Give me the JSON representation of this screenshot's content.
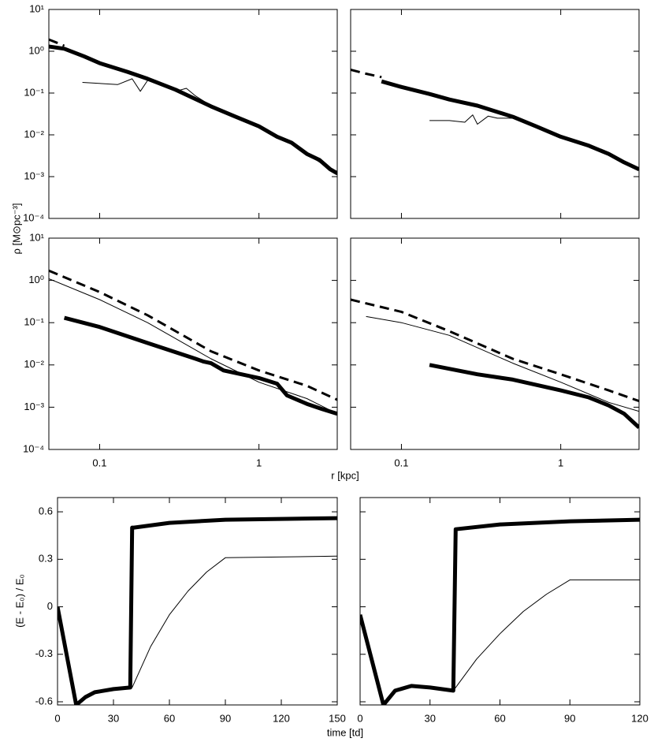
{
  "labels": {
    "ylabel_density": "ρ [M⊙pc⁻³]",
    "xlabel_r": "r [kpc]",
    "ylabel_energy": "(E - E₀) / E₀",
    "xlabel_time": "time [td]"
  },
  "chart_data": [
    {
      "type": "line",
      "xlog": true,
      "ylog": true,
      "xlim": [
        0.048,
        3.1
      ],
      "ylim": [
        0.0001,
        10
      ],
      "xticks": [
        0.1,
        1
      ],
      "show_xtick_labels": false,
      "show_ytick_labels": true,
      "yticks": [
        {
          "value": 10,
          "label": "10¹"
        },
        {
          "value": 1,
          "label": "10⁰"
        },
        {
          "value": 0.1,
          "label": "10⁻¹"
        },
        {
          "value": 0.01,
          "label": "10⁻²"
        },
        {
          "value": 0.001,
          "label": "10⁻³"
        },
        {
          "value": 0.0001,
          "label": "10⁻⁴"
        }
      ],
      "series": [
        {
          "color": "#000000",
          "width": 3,
          "dashed": true,
          "x": [
            0.048,
            0.055,
            0.06
          ],
          "values": [
            1.9,
            1.55,
            1.35
          ]
        },
        {
          "color": "#000000",
          "width": 1,
          "dashed": false,
          "x": [
            0.078,
            0.13,
            0.16,
            0.18,
            0.2,
            0.25,
            0.3,
            0.35,
            0.4,
            0.5,
            0.7,
            1,
            1.5,
            2,
            2.5,
            3.1
          ],
          "values": [
            0.18,
            0.16,
            0.22,
            0.11,
            0.2,
            0.17,
            0.11,
            0.13,
            0.085,
            0.05,
            0.028,
            0.017,
            0.007,
            0.0035,
            0.002,
            0.0011
          ]
        },
        {
          "color": "#000000",
          "width": 5,
          "dashed": false,
          "x": [
            0.048,
            0.06,
            0.08,
            0.1,
            0.15,
            0.2,
            0.3,
            0.5,
            0.7,
            1,
            1.3,
            1.6,
            2,
            2.4,
            2.8,
            3.1
          ],
          "values": [
            1.3,
            1.15,
            0.75,
            0.52,
            0.32,
            0.22,
            0.12,
            0.048,
            0.028,
            0.016,
            0.009,
            0.0065,
            0.0035,
            0.0025,
            0.0015,
            0.0012
          ]
        }
      ]
    },
    {
      "type": "line",
      "xlog": true,
      "ylog": true,
      "xlim": [
        0.048,
        3.1
      ],
      "ylim": [
        0.0001,
        10
      ],
      "xticks": [
        0.1,
        1
      ],
      "show_xtick_labels": false,
      "show_ytick_labels": false,
      "yticks": [
        10,
        1,
        0.1,
        0.01,
        0.001,
        0.0001
      ],
      "series": [
        {
          "color": "#000000",
          "width": 3,
          "dashed": true,
          "x": [
            0.048,
            0.06,
            0.075
          ],
          "values": [
            0.36,
            0.29,
            0.24
          ]
        },
        {
          "color": "#000000",
          "width": 1,
          "dashed": false,
          "x": [
            0.15,
            0.2,
            0.25,
            0.28,
            0.3,
            0.35,
            0.4,
            0.5,
            0.7,
            1,
            1.5,
            2,
            2.5,
            3.1
          ],
          "values": [
            0.022,
            0.022,
            0.02,
            0.03,
            0.018,
            0.028,
            0.025,
            0.025,
            0.015,
            0.009,
            0.006,
            0.0035,
            0.0022,
            0.0014
          ]
        },
        {
          "color": "#000000",
          "width": 5,
          "dashed": false,
          "x": [
            0.075,
            0.1,
            0.15,
            0.2,
            0.3,
            0.5,
            0.7,
            1,
            1.5,
            2,
            2.5,
            3.1
          ],
          "values": [
            0.19,
            0.14,
            0.095,
            0.07,
            0.05,
            0.027,
            0.016,
            0.009,
            0.0055,
            0.0035,
            0.0022,
            0.0015
          ]
        }
      ]
    },
    {
      "type": "line",
      "xlog": true,
      "ylog": true,
      "xlim": [
        0.048,
        3.1
      ],
      "ylim": [
        0.0001,
        10
      ],
      "xticks": [
        0.1,
        1
      ],
      "show_xtick_labels": true,
      "show_ytick_labels": true,
      "yticks": [
        {
          "value": 10,
          "label": "10¹"
        },
        {
          "value": 1,
          "label": "10⁰"
        },
        {
          "value": 0.1,
          "label": "10⁻¹"
        },
        {
          "value": 0.01,
          "label": "10⁻²"
        },
        {
          "value": 0.001,
          "label": "10⁻³"
        },
        {
          "value": 0.0001,
          "label": "10⁻⁴"
        }
      ],
      "series": [
        {
          "color": "#000000",
          "width": 3,
          "dashed": true,
          "x": [
            0.048,
            0.1,
            0.2,
            0.5,
            1,
            2,
            3.1
          ],
          "values": [
            1.7,
            0.53,
            0.15,
            0.021,
            0.0074,
            0.0032,
            0.0015
          ]
        },
        {
          "color": "#000000",
          "width": 1,
          "dashed": false,
          "x": [
            0.048,
            0.1,
            0.2,
            0.5,
            1,
            2,
            3.1
          ],
          "values": [
            1.1,
            0.35,
            0.1,
            0.014,
            0.0039,
            0.0016,
            0.0007
          ]
        },
        {
          "color": "#000000",
          "width": 5,
          "dashed": false,
          "x": [
            0.06,
            0.1,
            0.2,
            0.4,
            0.45,
            0.5,
            0.6,
            1,
            1.3,
            1.5,
            2,
            2.5,
            3.1
          ],
          "values": [
            0.13,
            0.079,
            0.033,
            0.014,
            0.012,
            0.011,
            0.0074,
            0.0049,
            0.0036,
            0.0019,
            0.0012,
            0.0009,
            0.0007
          ]
        }
      ]
    },
    {
      "type": "line",
      "xlog": true,
      "ylog": true,
      "xlim": [
        0.048,
        3.1
      ],
      "ylim": [
        0.0001,
        10
      ],
      "xticks": [
        0.1,
        1
      ],
      "show_xtick_labels": true,
      "show_ytick_labels": false,
      "yticks": [
        10,
        1,
        0.1,
        0.01,
        0.001,
        0.0001
      ],
      "series": [
        {
          "color": "#000000",
          "width": 3,
          "dashed": true,
          "x": [
            0.048,
            0.1,
            0.2,
            0.5,
            1,
            2,
            3.1
          ],
          "values": [
            0.35,
            0.18,
            0.063,
            0.014,
            0.006,
            0.0025,
            0.0014
          ]
        },
        {
          "color": "#000000",
          "width": 1,
          "dashed": false,
          "x": [
            0.06,
            0.1,
            0.2,
            0.5,
            1,
            2,
            3.1
          ],
          "values": [
            0.14,
            0.1,
            0.05,
            0.011,
            0.0039,
            0.0013,
            0.0008
          ]
        },
        {
          "color": "#000000",
          "width": 5,
          "dashed": false,
          "x": [
            0.15,
            0.3,
            0.5,
            1,
            1.5,
            2,
            2.5,
            3.1
          ],
          "values": [
            0.01,
            0.006,
            0.0045,
            0.0025,
            0.0017,
            0.0011,
            0.0007,
            0.00033
          ]
        }
      ]
    },
    {
      "type": "line",
      "xlog": false,
      "ylog": false,
      "xlim": [
        0,
        150
      ],
      "ylim": [
        -0.62,
        0.69
      ],
      "xticks": [
        0,
        30,
        60,
        90,
        120,
        150
      ],
      "show_xtick_labels": true,
      "show_ytick_labels": true,
      "yticks": [
        0.6,
        0.3,
        0,
        -0.3,
        -0.6
      ],
      "series": [
        {
          "color": "#000000",
          "width": 1,
          "dashed": false,
          "x": [
            40,
            50,
            60,
            70,
            80,
            90,
            150
          ],
          "values": [
            -0.51,
            -0.25,
            -0.05,
            0.1,
            0.22,
            0.31,
            0.32
          ]
        },
        {
          "color": "#000000",
          "width": 5,
          "dashed": false,
          "x": [
            0,
            10,
            12,
            15,
            20,
            30,
            39,
            40,
            41,
            60,
            90,
            150
          ],
          "values": [
            0,
            -0.62,
            -0.6,
            -0.57,
            -0.54,
            -0.52,
            -0.51,
            0.5,
            0.5,
            0.53,
            0.55,
            0.56
          ]
        }
      ]
    },
    {
      "type": "line",
      "xlog": false,
      "ylog": false,
      "xlim": [
        0,
        120
      ],
      "ylim": [
        -0.62,
        0.69
      ],
      "xticks": [
        0,
        30,
        60,
        90,
        120
      ],
      "show_xtick_labels": true,
      "show_ytick_labels": false,
      "yticks": [
        0.6,
        0.3,
        0,
        -0.3,
        -0.6
      ],
      "series": [
        {
          "color": "#000000",
          "width": 1,
          "dashed": false,
          "x": [
            40,
            50,
            60,
            70,
            80,
            90,
            120
          ],
          "values": [
            -0.53,
            -0.33,
            -0.17,
            -0.03,
            0.08,
            0.17,
            0.17
          ]
        },
        {
          "color": "#000000",
          "width": 5,
          "dashed": false,
          "x": [
            0,
            10,
            15,
            22,
            30,
            40,
            41,
            60,
            90,
            120
          ],
          "values": [
            -0.05,
            -0.62,
            -0.53,
            -0.5,
            -0.51,
            -0.53,
            0.49,
            0.52,
            0.54,
            0.55
          ]
        }
      ]
    }
  ]
}
